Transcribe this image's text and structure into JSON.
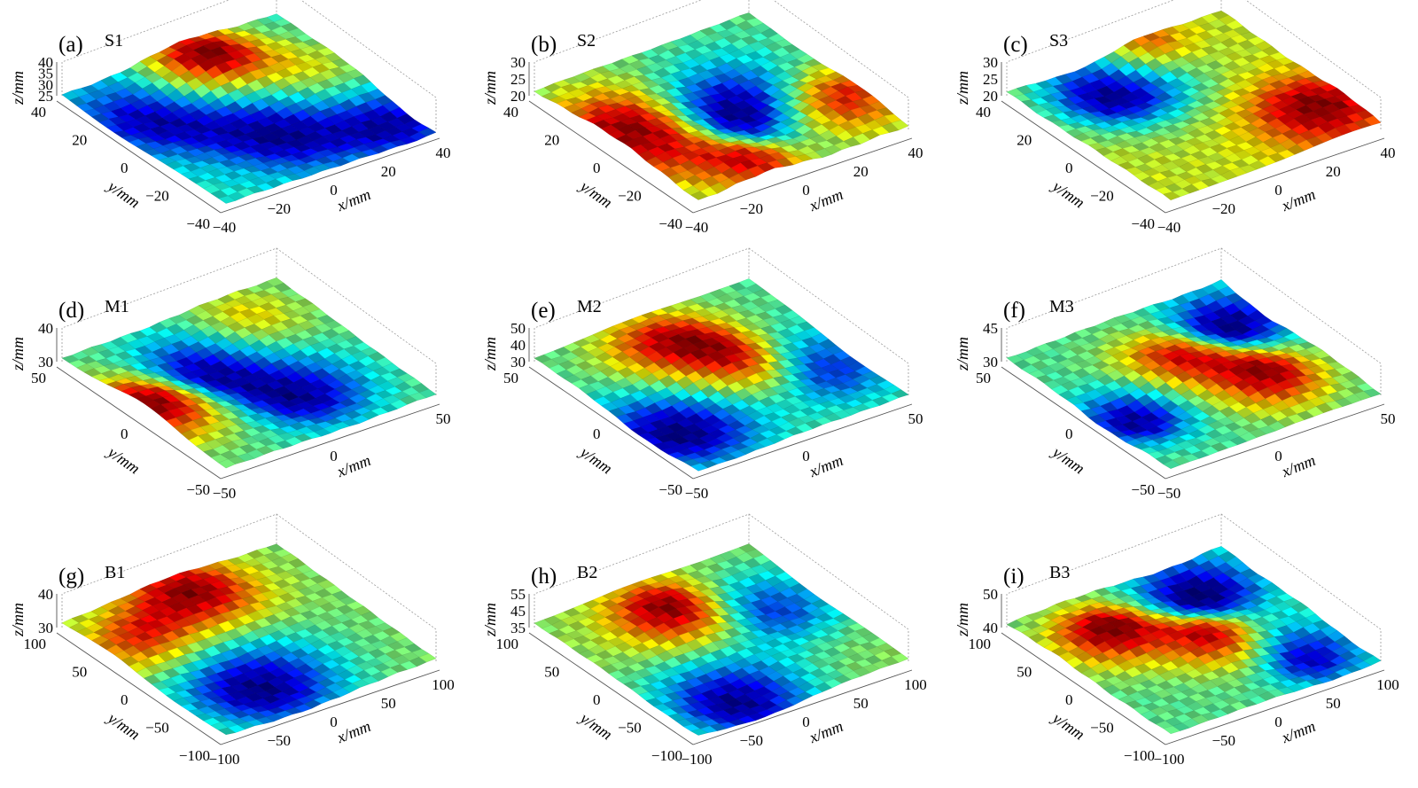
{
  "chart_data": [
    {
      "type": "surface",
      "panel": "(a)",
      "sample": "S1",
      "xlabel": "x/mm",
      "ylabel": "y/mm",
      "zlabel": "z/mm",
      "xticks": [
        "−40",
        "−20",
        "0",
        "20",
        "40"
      ],
      "yticks": [
        "40",
        "20",
        "0",
        "−20",
        "−40"
      ],
      "zticks": [
        "40",
        "35",
        "30",
        "25"
      ],
      "xlim": [
        -50,
        50
      ],
      "ylim": [
        -50,
        50
      ],
      "zlim": [
        25,
        40
      ],
      "colormap": "jet",
      "features": [
        {
          "x": 0.55,
          "y": 0.85,
          "h": 1.0,
          "r": 0.16
        },
        {
          "x": 0.2,
          "y": 0.7,
          "h": -0.55,
          "r": 0.2
        },
        {
          "x": 0.55,
          "y": 0.35,
          "h": -0.65,
          "r": 0.22
        },
        {
          "x": 0.8,
          "y": 0.55,
          "h": 0.45,
          "r": 0.18
        },
        {
          "x": 0.92,
          "y": 0.15,
          "h": -0.5,
          "r": 0.16
        }
      ]
    },
    {
      "type": "surface",
      "panel": "(b)",
      "sample": "S2",
      "xlabel": "x/mm",
      "ylabel": "y/mm",
      "zlabel": "z/mm",
      "xticks": [
        "−40",
        "−20",
        "0",
        "20",
        "40"
      ],
      "yticks": [
        "40",
        "20",
        "0",
        "−20",
        "−40"
      ],
      "zticks": [
        "30",
        "25",
        "20"
      ],
      "xlim": [
        -50,
        50
      ],
      "ylim": [
        -50,
        50
      ],
      "zlim": [
        20,
        30
      ],
      "colormap": "jet",
      "features": [
        {
          "x": 0.15,
          "y": 0.5,
          "h": 0.7,
          "r": 0.25
        },
        {
          "x": 0.55,
          "y": 0.45,
          "h": -0.85,
          "r": 0.22
        },
        {
          "x": 0.85,
          "y": 0.3,
          "h": 0.65,
          "r": 0.18
        },
        {
          "x": 0.35,
          "y": 0.1,
          "h": 0.5,
          "r": 0.15
        }
      ]
    },
    {
      "type": "surface",
      "panel": "(c)",
      "sample": "S3",
      "xlabel": "x/mm",
      "ylabel": "y/mm",
      "zlabel": "z/mm",
      "xticks": [
        "−40",
        "−20",
        "0",
        "20",
        "40"
      ],
      "yticks": [
        "40",
        "20",
        "0",
        "−20",
        "−40"
      ],
      "zticks": [
        "30",
        "25",
        "20"
      ],
      "xlim": [
        -50,
        50
      ],
      "ylim": [
        -50,
        50
      ],
      "zlim": [
        20,
        30
      ],
      "colormap": "jet",
      "features": [
        {
          "x": 0.35,
          "y": 0.8,
          "h": -0.85,
          "r": 0.2
        },
        {
          "x": 0.85,
          "y": 0.2,
          "h": 0.6,
          "r": 0.18
        },
        {
          "x": 0.6,
          "y": 0.95,
          "h": 0.5,
          "r": 0.12
        }
      ]
    },
    {
      "type": "surface",
      "panel": "(d)",
      "sample": "M1",
      "xlabel": "x/mm",
      "ylabel": "y/mm",
      "zlabel": "z/mm",
      "xticks": [
        "−50",
        "0",
        "50"
      ],
      "yticks": [
        "50",
        "0",
        "−50"
      ],
      "zticks": [
        "40",
        "30"
      ],
      "xlim": [
        -75,
        75
      ],
      "ylim": [
        -75,
        75
      ],
      "zlim": [
        25,
        45
      ],
      "colormap": "jet",
      "features": [
        {
          "x": 0.05,
          "y": 0.5,
          "h": 0.95,
          "r": 0.18
        },
        {
          "x": 0.4,
          "y": 0.65,
          "h": -0.8,
          "r": 0.18
        },
        {
          "x": 0.6,
          "y": 0.3,
          "h": -0.7,
          "r": 0.18
        },
        {
          "x": 0.7,
          "y": 0.8,
          "h": 0.4,
          "r": 0.16
        }
      ]
    },
    {
      "type": "surface",
      "panel": "(e)",
      "sample": "M2",
      "xlabel": "x/mm",
      "ylabel": "y/mm",
      "zlabel": "z/mm",
      "xticks": [
        "−50",
        "0",
        "50"
      ],
      "yticks": [
        "50",
        "0",
        "−50"
      ],
      "zticks": [
        "50",
        "40",
        "30"
      ],
      "xlim": [
        -75,
        75
      ],
      "ylim": [
        -75,
        75
      ],
      "zlim": [
        30,
        50
      ],
      "colormap": "jet",
      "features": [
        {
          "x": 0.15,
          "y": 0.3,
          "h": -0.85,
          "r": 0.2
        },
        {
          "x": 0.45,
          "y": 0.75,
          "h": 0.85,
          "r": 0.18
        },
        {
          "x": 0.6,
          "y": 0.5,
          "h": 0.7,
          "r": 0.15
        },
        {
          "x": 0.85,
          "y": 0.35,
          "h": -0.6,
          "r": 0.18
        }
      ]
    },
    {
      "type": "surface",
      "panel": "(f)",
      "sample": "M3",
      "xlabel": "x/mm",
      "ylabel": "y/mm",
      "zlabel": "z/mm",
      "xticks": [
        "−50",
        "0",
        "50"
      ],
      "yticks": [
        "50",
        "0",
        "−50"
      ],
      "zticks": [
        "45",
        "30"
      ],
      "xlim": [
        -75,
        75
      ],
      "ylim": [
        -75,
        75
      ],
      "zlim": [
        30,
        45
      ],
      "colormap": "jet",
      "features": [
        {
          "x": 0.15,
          "y": 0.4,
          "h": -0.7,
          "r": 0.14
        },
        {
          "x": 0.5,
          "y": 0.6,
          "h": 0.65,
          "r": 0.16
        },
        {
          "x": 0.7,
          "y": 0.3,
          "h": 0.75,
          "r": 0.15
        },
        {
          "x": 0.85,
          "y": 0.75,
          "h": -0.75,
          "r": 0.15
        }
      ]
    },
    {
      "type": "surface",
      "panel": "(g)",
      "sample": "B1",
      "xlabel": "x/mm",
      "ylabel": "y/mm",
      "zlabel": "z/mm",
      "xticks": [
        "−100",
        "−50",
        "0",
        "50",
        "100"
      ],
      "yticks": [
        "100",
        "50",
        "0",
        "−50",
        "−100"
      ],
      "zticks": [
        "40",
        "30"
      ],
      "xlim": [
        -100,
        100
      ],
      "ylim": [
        -100,
        100
      ],
      "zlim": [
        25,
        45
      ],
      "colormap": "jet",
      "features": [
        {
          "x": 0.35,
          "y": 0.25,
          "h": -0.9,
          "r": 0.22
        },
        {
          "x": 0.5,
          "y": 0.85,
          "h": 0.85,
          "r": 0.18
        },
        {
          "x": 0.15,
          "y": 0.7,
          "h": 0.6,
          "r": 0.15
        }
      ]
    },
    {
      "type": "surface",
      "panel": "(h)",
      "sample": "B2",
      "xlabel": "x/mm",
      "ylabel": "y/mm",
      "zlabel": "z/mm",
      "xticks": [
        "−100",
        "−50",
        "0",
        "50",
        "100"
      ],
      "yticks": [
        "100",
        "50",
        "0",
        "−50",
        "−100"
      ],
      "zticks": [
        "55",
        "45",
        "35"
      ],
      "xlim": [
        -100,
        100
      ],
      "ylim": [
        -100,
        100
      ],
      "zlim": [
        35,
        55
      ],
      "colormap": "jet",
      "features": [
        {
          "x": 0.3,
          "y": 0.15,
          "h": -0.85,
          "r": 0.2
        },
        {
          "x": 0.45,
          "y": 0.75,
          "h": 0.85,
          "r": 0.16
        },
        {
          "x": 0.8,
          "y": 0.6,
          "h": -0.6,
          "r": 0.18
        }
      ]
    },
    {
      "type": "surface",
      "panel": "(i)",
      "sample": "B3",
      "xlabel": "x/mm",
      "ylabel": "y/mm",
      "zlabel": "z/mm",
      "xticks": [
        "−100",
        "−50",
        "0",
        "50",
        "100"
      ],
      "yticks": [
        "100",
        "50",
        "0",
        "−50",
        "−100"
      ],
      "zticks": [
        "50",
        "40"
      ],
      "xlim": [
        -100,
        100
      ],
      "ylim": [
        -100,
        100
      ],
      "zlim": [
        35,
        55
      ],
      "colormap": "jet",
      "features": [
        {
          "x": 0.25,
          "y": 0.7,
          "h": 0.8,
          "r": 0.15
        },
        {
          "x": 0.55,
          "y": 0.45,
          "h": 0.7,
          "r": 0.14
        },
        {
          "x": 0.75,
          "y": 0.8,
          "h": -0.75,
          "r": 0.16
        },
        {
          "x": 0.8,
          "y": 0.2,
          "h": -0.6,
          "r": 0.15
        }
      ]
    }
  ]
}
